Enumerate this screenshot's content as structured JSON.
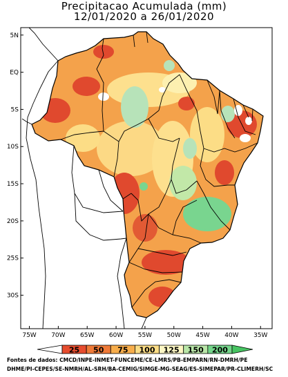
{
  "title": {
    "line1": "Precipitacao Acumulada (mm)",
    "line2": "12/01/2020 a 26/01/2020"
  },
  "axes": {
    "lat_labels": [
      {
        "value": 5,
        "label": "5N"
      },
      {
        "value": 0,
        "label": "EQ"
      },
      {
        "value": -5,
        "label": "5S"
      },
      {
        "value": -10,
        "label": "10S"
      },
      {
        "value": -15,
        "label": "15S"
      },
      {
        "value": -20,
        "label": "20S"
      },
      {
        "value": -25,
        "label": "25S"
      },
      {
        "value": -30,
        "label": "30S"
      }
    ],
    "lon_labels": [
      {
        "value": -75,
        "label": "75W"
      },
      {
        "value": -70,
        "label": "70W"
      },
      {
        "value": -65,
        "label": "65W"
      },
      {
        "value": -60,
        "label": "60W"
      },
      {
        "value": -55,
        "label": "55W"
      },
      {
        "value": -50,
        "label": "50W"
      },
      {
        "value": -45,
        "label": "45W"
      },
      {
        "value": -40,
        "label": "40W"
      },
      {
        "value": -35,
        "label": "35W"
      }
    ],
    "lon_range": [
      -76.5,
      -33
    ],
    "lat_range": [
      -34.5,
      6
    ]
  },
  "legend": {
    "thresholds": [
      "25",
      "50",
      "75",
      "100",
      "125",
      "150",
      "200"
    ],
    "colors": [
      "#e64c2e",
      "#ef7a38",
      "#f7ad4b",
      "#fcdd86",
      "#fdf7c4",
      "#b9e6a8",
      "#75d68b"
    ],
    "arrow_left_color": "#ffffff",
    "arrow_right_color": "#47c462"
  },
  "palette": {
    "bg_region": "#f4a24b",
    "wet_blob": "#b7e3b9",
    "very_dry": "#e0492e",
    "very_wet": "#79d58f"
  },
  "credits": {
    "line1": "Fontes de dados: CMCD/INPE-INMET-FUNCEME/CE-LMRS/PB-EMPARN/RN-DMRH/PE",
    "line2": "DHME/PI-CEPES/SE-NMRH/AL-SRH/BA-CEMIG/SIMGE-MG-SEAG/ES-SIMEPAR/PR-CLIMERH/SC"
  }
}
